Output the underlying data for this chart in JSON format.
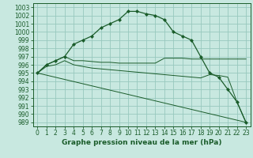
{
  "bg_color": "#c8e8e0",
  "grid_color": "#98c8be",
  "line_color": "#1a5c2a",
  "title": "Graphe pression niveau de la mer (hPa)",
  "xlim": [
    -0.5,
    23.5
  ],
  "ylim": [
    988.5,
    1003.5
  ],
  "xticks": [
    0,
    1,
    2,
    3,
    4,
    5,
    6,
    7,
    8,
    9,
    10,
    11,
    12,
    13,
    14,
    15,
    16,
    17,
    18,
    19,
    20,
    21,
    22,
    23
  ],
  "yticks": [
    989,
    990,
    991,
    992,
    993,
    994,
    995,
    996,
    997,
    998,
    999,
    1000,
    1001,
    1002,
    1003
  ],
  "curve1_x": [
    0,
    1,
    2,
    3,
    4,
    5,
    6,
    7,
    8,
    9,
    10,
    11,
    12,
    13,
    14,
    15,
    16,
    17,
    18,
    19,
    20,
    21,
    22,
    23
  ],
  "curve1_y": [
    995.0,
    996.0,
    996.5,
    997.0,
    998.5,
    999.0,
    999.5,
    1000.5,
    1001.0,
    1001.5,
    1002.5,
    1002.5,
    1002.2,
    1002.0,
    1001.5,
    1000.0,
    999.5,
    999.0,
    997.0,
    995.0,
    994.5,
    993.0,
    991.5,
    989.0
  ],
  "curve2_x": [
    0,
    1,
    2,
    3,
    4,
    5,
    6,
    7,
    8,
    9,
    10,
    11,
    12,
    13,
    14,
    15,
    16,
    17,
    18,
    19,
    20,
    21,
    22,
    23
  ],
  "curve2_y": [
    995.0,
    996.0,
    996.5,
    997.0,
    996.5,
    996.5,
    996.4,
    996.3,
    996.3,
    996.2,
    996.2,
    996.2,
    996.2,
    996.2,
    996.8,
    996.8,
    996.8,
    996.7,
    996.7,
    996.7,
    996.7,
    996.7,
    996.7,
    996.7
  ],
  "curve3_x": [
    0,
    1,
    2,
    3,
    4,
    5,
    6,
    7,
    8,
    9,
    10,
    11,
    12,
    13,
    14,
    15,
    16,
    17,
    18,
    19,
    20,
    21,
    22,
    23
  ],
  "curve3_y": [
    995.0,
    995.8,
    996.0,
    996.5,
    996.0,
    995.8,
    995.6,
    995.5,
    995.4,
    995.3,
    995.2,
    995.1,
    995.0,
    994.9,
    994.8,
    994.7,
    994.6,
    994.5,
    994.4,
    994.8,
    994.7,
    994.5,
    991.5,
    989.0
  ],
  "curve4_x": [
    0,
    23
  ],
  "curve4_y": [
    995.0,
    989.0
  ],
  "title_fontsize": 6.5,
  "tick_fontsize": 5.5
}
